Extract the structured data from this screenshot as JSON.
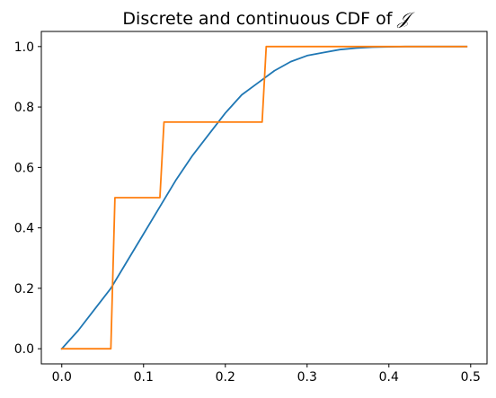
{
  "chart_data": {
    "type": "line",
    "title": "Discrete and continuous CDF of ",
    "title_symbol": "𝒥",
    "xlabel": "",
    "ylabel": "",
    "xlim": [
      -0.025,
      0.52
    ],
    "ylim": [
      -0.05,
      1.05
    ],
    "xticks": [
      0.0,
      0.1,
      0.2,
      0.3,
      0.4,
      0.5
    ],
    "xtick_labels": [
      "0.0",
      "0.1",
      "0.2",
      "0.3",
      "0.4",
      "0.5"
    ],
    "yticks": [
      0.0,
      0.2,
      0.4,
      0.6,
      0.8,
      1.0
    ],
    "ytick_labels": [
      "0.0",
      "0.2",
      "0.4",
      "0.6",
      "0.8",
      "1.0"
    ],
    "grid": false,
    "legend": "none",
    "series": [
      {
        "color": "#1f77b4",
        "x": [
          0.0,
          0.02,
          0.04,
          0.06,
          0.08,
          0.1,
          0.12,
          0.14,
          0.16,
          0.18,
          0.2,
          0.22,
          0.24,
          0.26,
          0.28,
          0.3,
          0.32,
          0.34,
          0.36,
          0.38,
          0.4,
          0.42,
          0.44,
          0.46,
          0.48,
          0.495
        ],
        "y": [
          0.0,
          0.06,
          0.13,
          0.2,
          0.29,
          0.38,
          0.47,
          0.56,
          0.64,
          0.71,
          0.78,
          0.84,
          0.88,
          0.92,
          0.95,
          0.97,
          0.98,
          0.99,
          0.995,
          0.998,
          0.999,
          1.0,
          1.0,
          1.0,
          1.0,
          1.0
        ]
      },
      {
        "color": "#ff7f0e",
        "x": [
          0.0,
          0.06,
          0.065,
          0.12,
          0.125,
          0.245,
          0.25,
          0.495
        ],
        "y": [
          0.0,
          0.0,
          0.5,
          0.5,
          0.75,
          0.75,
          1.0,
          1.0
        ]
      }
    ]
  }
}
